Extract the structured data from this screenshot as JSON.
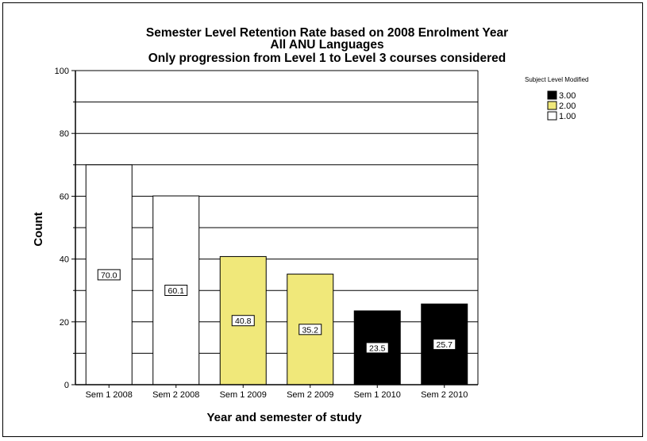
{
  "chart_data": {
    "type": "bar",
    "title": [
      "Semester Level Retention Rate based on 2008 Enrolment Year",
      "All ANU Languages",
      "Only progression from Level 1 to Level 3 courses considered"
    ],
    "xlabel": "Year and semester of study",
    "ylabel": "Count",
    "ylim": [
      0,
      100
    ],
    "yticks": [
      "0",
      "20",
      "40",
      "60",
      "80",
      "100"
    ],
    "grid": true,
    "legend_position": "top-right",
    "legend": {
      "title": "Subject Level Modified",
      "entries": [
        {
          "label": "3.00",
          "color": "#000000"
        },
        {
          "label": "2.00",
          "color": "#f0e87a"
        },
        {
          "label": "1.00",
          "color": "#ffffff"
        }
      ]
    },
    "categories": [
      "Sem 1 2008",
      "Sem 2 2008",
      "Sem 1 2009",
      "Sem 2 2009",
      "Sem 1 2010",
      "Sem 2 2010"
    ],
    "values": [
      70.0,
      60.1,
      40.8,
      35.2,
      23.5,
      25.7
    ],
    "data_labels": [
      "70.0",
      "60.1",
      "40.8",
      "35.2",
      "23.5",
      "25.7"
    ],
    "bar_level": [
      "1.00",
      "1.00",
      "2.00",
      "2.00",
      "3.00",
      "3.00"
    ],
    "bar_colors": [
      "#ffffff",
      "#ffffff",
      "#f0e87a",
      "#f0e87a",
      "#000000",
      "#000000"
    ]
  }
}
